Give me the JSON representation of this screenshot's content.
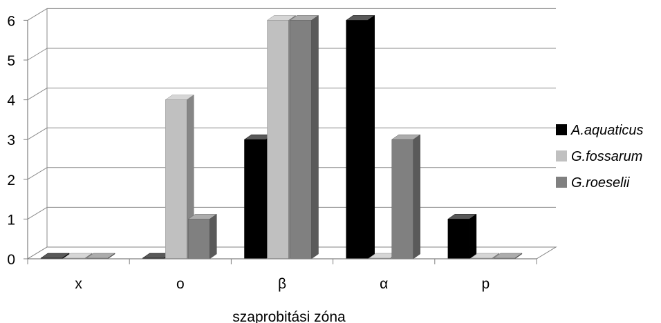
{
  "chart_data": {
    "type": "bar",
    "categories": [
      "x",
      "o",
      "β",
      "α",
      "p"
    ],
    "series": [
      {
        "name": "A.aquaticus",
        "values": [
          0,
          0,
          3,
          6,
          1
        ],
        "color": "#000000"
      },
      {
        "name": "G.fossarum",
        "values": [
          0,
          4,
          6,
          0,
          0
        ],
        "color": "#c0c0c0"
      },
      {
        "name": "G.roeselii",
        "values": [
          0,
          1,
          6,
          3,
          0
        ],
        "color": "#808080"
      }
    ],
    "xlabel": "szaprobitási zóna",
    "ylim": [
      0,
      6
    ],
    "yticks": [
      "0",
      "1",
      "2",
      "3",
      "4",
      "5",
      "6"
    ],
    "grid": true,
    "style": "3d",
    "legend_position": "right"
  }
}
